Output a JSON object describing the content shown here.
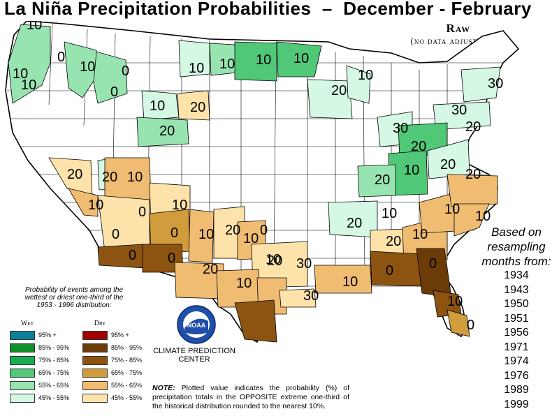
{
  "title": "La Niña Precipitation Probabilities  –  December - February",
  "subtitle": {
    "line1": "Raw",
    "line2": "(no data adjustments)"
  },
  "colors": {
    "wet": [
      "#0d7f98",
      "#10902a",
      "#18ae50",
      "#50c878",
      "#98e4b0",
      "#d4f8e4"
    ],
    "dry": [
      "#a00000",
      "#6b3c08",
      "#8c5410",
      "#d09c3c",
      "#f0bc72",
      "#fde3aa"
    ]
  },
  "map_labels": [
    {
      "value": "10",
      "region": "washington-coast-north"
    },
    {
      "value": "10",
      "region": "washington-coast-west"
    },
    {
      "value": "10",
      "region": "washington-coast-south"
    },
    {
      "value": "0",
      "region": "washington-cascades"
    },
    {
      "value": "10",
      "region": "washington-east"
    },
    {
      "value": "0",
      "region": "idaho-panhandle"
    },
    {
      "value": "0",
      "region": "idaho-central"
    },
    {
      "value": "10",
      "region": "montana-central"
    },
    {
      "value": "10",
      "region": "north-dakota-west"
    },
    {
      "value": "10",
      "region": "north-dakota-east"
    },
    {
      "value": "10",
      "region": "minnesota-north"
    },
    {
      "value": "10",
      "region": "wyoming-north"
    },
    {
      "value": "20",
      "region": "south-dakota-west"
    },
    {
      "value": "20",
      "region": "wyoming-colorado"
    },
    {
      "value": "20",
      "region": "wisconsin"
    },
    {
      "value": "10",
      "region": "michigan-upper"
    },
    {
      "value": "30",
      "region": "new-york-north"
    },
    {
      "value": "30",
      "region": "pennsylvania-east"
    },
    {
      "value": "20",
      "region": "new-york-south"
    },
    {
      "value": "30",
      "region": "ohio-northwest"
    },
    {
      "value": "20",
      "region": "ohio-southeast"
    },
    {
      "value": "10",
      "region": "west-virginia"
    },
    {
      "value": "20",
      "region": "virginia-west"
    },
    {
      "value": "20",
      "region": "kentucky-west"
    },
    {
      "value": "20",
      "region": "nevada-north"
    },
    {
      "value": "20",
      "region": "nevada-central"
    },
    {
      "value": "10",
      "region": "utah-west"
    },
    {
      "value": "10",
      "region": "california-south"
    },
    {
      "value": "0",
      "region": "arizona-northwest"
    },
    {
      "value": "10",
      "region": "arizona-northeast"
    },
    {
      "value": "0",
      "region": "arizona-south"
    },
    {
      "value": "0",
      "region": "new-mexico-southwest"
    },
    {
      "value": "0",
      "region": "new-mexico-south"
    },
    {
      "value": "0",
      "region": "new-mexico-north"
    },
    {
      "value": "10",
      "region": "new-mexico-east"
    },
    {
      "value": "20",
      "region": "texas-panhandle"
    },
    {
      "value": "0",
      "region": "oklahoma-west"
    },
    {
      "value": "10",
      "region": "texas-west"
    },
    {
      "value": "10",
      "region": "texas-central"
    },
    {
      "value": "20",
      "region": "texas-north"
    },
    {
      "value": "30",
      "region": "arkansas-south"
    },
    {
      "value": "20",
      "region": "texas-east"
    },
    {
      "value": "30",
      "region": "louisiana-north"
    },
    {
      "value": "10",
      "region": "texas-south"
    },
    {
      "value": "10",
      "region": "louisiana-south"
    },
    {
      "value": "20",
      "region": "tennessee-west"
    },
    {
      "value": "10",
      "region": "tennessee-east"
    },
    {
      "value": "20",
      "region": "north-carolina-north"
    },
    {
      "value": "10",
      "region": "north-carolina-west"
    },
    {
      "value": "10",
      "region": "north-carolina-east"
    },
    {
      "value": "10",
      "region": "georgia-north"
    },
    {
      "value": "20",
      "region": "alabama-north"
    },
    {
      "value": "0",
      "region": "mississippi-south"
    },
    {
      "value": "0",
      "region": "georgia-south"
    },
    {
      "value": "10",
      "region": "florida-north"
    },
    {
      "value": "0",
      "region": "florida-south"
    }
  ],
  "resampling": {
    "heading": [
      "Based on",
      "resampling",
      "months from:"
    ],
    "years": [
      "1934",
      "1943",
      "1950",
      "1951",
      "1956",
      "1971",
      "1974",
      "1976",
      "1989",
      "1999"
    ]
  },
  "legend": {
    "caption": [
      "Probability of events among the",
      "wettest or driest one-third of the",
      "1953 - 1996 distribution:"
    ],
    "wet_title": "Wet",
    "dry_title": "Dry",
    "ranges": [
      "95% +",
      "85% - 95%",
      "75% - 85%",
      "65% - 75%",
      "55% - 65%",
      "45% - 55%"
    ]
  },
  "logo_text": "NOAA",
  "center_name": [
    "CLIMATE PREDICTION",
    "CENTER"
  ],
  "note": {
    "label": "NOTE:",
    "text": "Plotted value indicates the probability (%) of precipitation totals in the OPPOSITE extreme one-third of the historical distribution rounded to the nearest 10%."
  }
}
